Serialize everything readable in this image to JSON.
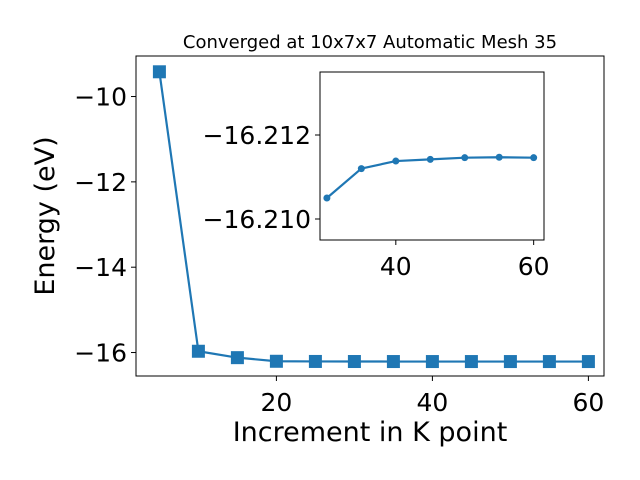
{
  "chart_data": [
    {
      "type": "line",
      "title": "Converged at 10x7x7 Automatic Mesh 35",
      "xlabel": "Increment in K point",
      "ylabel": "Energy (eV)",
      "xlim": [
        2,
        62
      ],
      "ylim": [
        -16.55,
        -9.05
      ],
      "xticks": [
        20,
        40,
        60
      ],
      "yticks": [
        -10,
        -12,
        -14,
        -16
      ],
      "x": [
        5,
        10,
        15,
        20,
        25,
        30,
        35,
        40,
        45,
        50,
        55,
        60
      ],
      "series": [
        {
          "values": [
            -9.42,
            -15.97,
            -16.12,
            -16.205,
            -16.209,
            -16.2105,
            -16.2112,
            -16.2114,
            -16.2114,
            -16.2115,
            -16.2115,
            -16.2115
          ]
        }
      ],
      "marker": "square",
      "color": "#1f77b4",
      "grid": false
    },
    {
      "type": "line",
      "title": "",
      "xlabel": "",
      "ylabel": "",
      "xlim": [
        29,
        61.5
      ],
      "ylim": [
        -16.2095,
        -16.2135
      ],
      "xticks": [
        40,
        60
      ],
      "yticks": [
        -16.212,
        -16.21
      ],
      "x": [
        30,
        35,
        40,
        45,
        50,
        55,
        60
      ],
      "series": [
        {
          "values": [
            -16.2105,
            -16.2112,
            -16.21138,
            -16.21142,
            -16.21146,
            -16.21147,
            -16.21146
          ]
        }
      ],
      "marker": "circle",
      "color": "#1f77b4",
      "grid": false
    }
  ]
}
